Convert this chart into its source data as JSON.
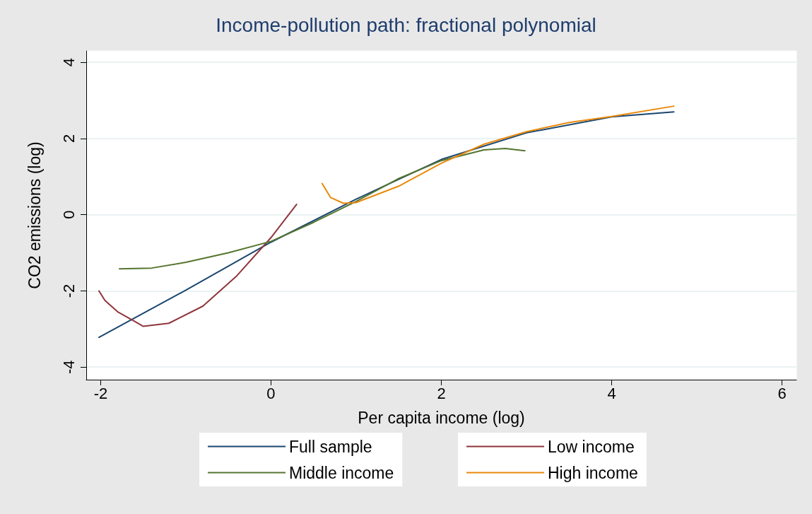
{
  "chart_data": {
    "type": "line",
    "title": "Income-pollution path: fractional polynomial",
    "xlabel": "Per capita income (log)",
    "ylabel": "CO2 emissions (log)",
    "xlim": [
      -2.17,
      6.17
    ],
    "xticks": [
      -2,
      0,
      2,
      4,
      6
    ],
    "ylim": [
      -4.33,
      4.3
    ],
    "yticks": [
      -4,
      -2,
      0,
      2,
      4
    ],
    "grid": "y",
    "legend": "bottom",
    "marker": "none",
    "line_style": "solid",
    "series": [
      {
        "name": "Full sample",
        "color": "#1a476f",
        "x": [
          -2.02,
          -1,
          0,
          1,
          2,
          3,
          4,
          4.73
        ],
        "values": [
          -3.22,
          -1.98,
          -0.72,
          0.41,
          1.45,
          2.15,
          2.57,
          2.7
        ]
      },
      {
        "name": "Low income",
        "color": "#90353b",
        "x": [
          -2.02,
          -1.95,
          -1.8,
          -1.6,
          -1.5,
          -1.2,
          -0.8,
          -0.4,
          0,
          0.3
        ],
        "values": [
          -2.0,
          -2.25,
          -2.55,
          -2.8,
          -2.93,
          -2.85,
          -2.4,
          -1.6,
          -0.6,
          0.27
        ]
      },
      {
        "name": "Middle income",
        "color": "#55752f",
        "x": [
          -1.78,
          -1.4,
          -1,
          -0.5,
          0,
          0.5,
          1,
          1.5,
          2,
          2.5,
          2.75,
          2.98
        ],
        "values": [
          -1.42,
          -1.4,
          -1.25,
          -1.0,
          -0.7,
          -0.2,
          0.35,
          0.95,
          1.42,
          1.7,
          1.74,
          1.68
        ]
      },
      {
        "name": "High income",
        "color": "#e8890c",
        "x": [
          0.6,
          0.7,
          0.85,
          1,
          1.5,
          2,
          2.5,
          3,
          3.5,
          4,
          4.73
        ],
        "values": [
          0.82,
          0.45,
          0.3,
          0.32,
          0.75,
          1.35,
          1.85,
          2.18,
          2.42,
          2.58,
          2.85
        ]
      }
    ]
  }
}
